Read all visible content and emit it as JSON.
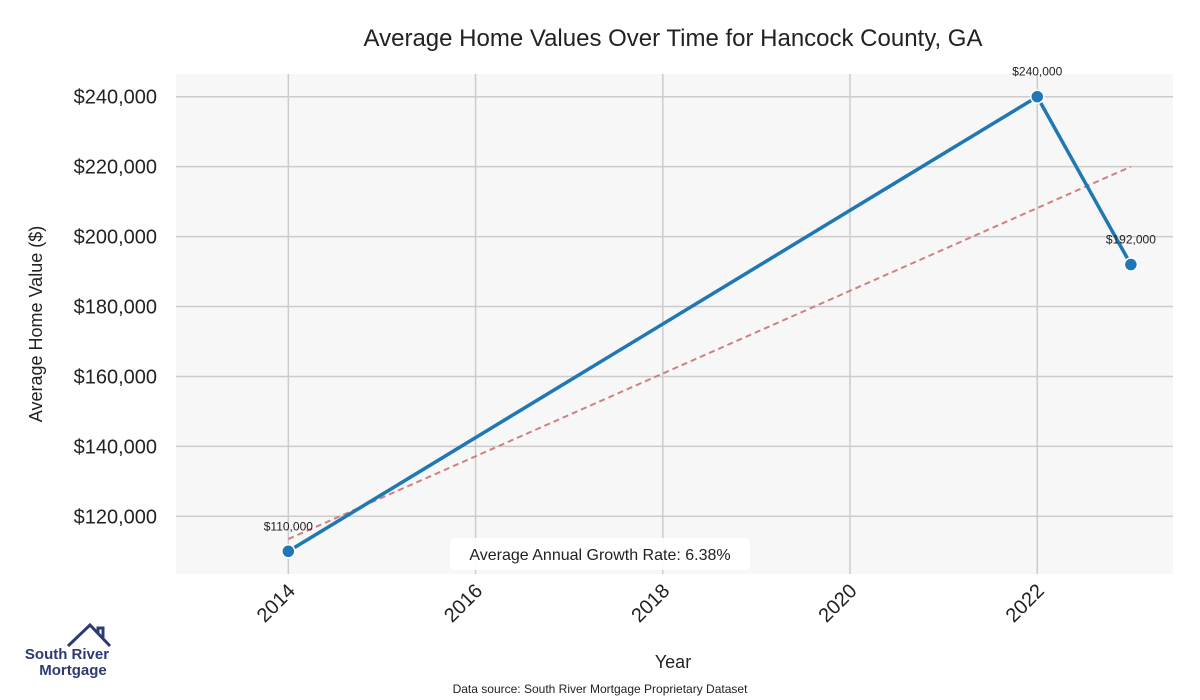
{
  "chart_data": {
    "type": "line",
    "title": "Average Home Values Over Time for Hancock County, GA",
    "xlabel": "Year",
    "ylabel": "Average Home Value ($)",
    "x": [
      2014,
      2022,
      2023
    ],
    "series": [
      {
        "values": [
          110000,
          240000,
          192000
        ],
        "color": "#1f77b4"
      }
    ],
    "data_labels": [
      "$110,000",
      "$240,000",
      "$192,000"
    ],
    "trend_line": {
      "x": [
        2014,
        2023
      ],
      "y": [
        113500,
        220000
      ],
      "color": "#d08080",
      "style": "dashed"
    },
    "x_ticks": [
      2014,
      2016,
      2018,
      2020,
      2022
    ],
    "x_tick_labels": [
      "2014",
      "2016",
      "2018",
      "2020",
      "2022"
    ],
    "y_ticks": [
      120000,
      140000,
      160000,
      180000,
      200000,
      220000,
      240000
    ],
    "y_tick_labels": [
      "$120,000",
      "$140,000",
      "$160,000",
      "$180,000",
      "$200,000",
      "$220,000",
      "$240,000"
    ],
    "xlim": [
      2012.8,
      2023.45
    ],
    "ylim": [
      103500,
      246500
    ],
    "grid": true,
    "plot_background": "#f7f7f7",
    "annotation": "Average Annual Growth Rate: 6.38%"
  },
  "footer": {
    "source": "Data source: South River Mortgage Proprietary Dataset"
  },
  "logo": {
    "line1": "South River",
    "line2": "Mortgage",
    "color": "#2d3a73",
    "icon": "house-roof-icon"
  }
}
